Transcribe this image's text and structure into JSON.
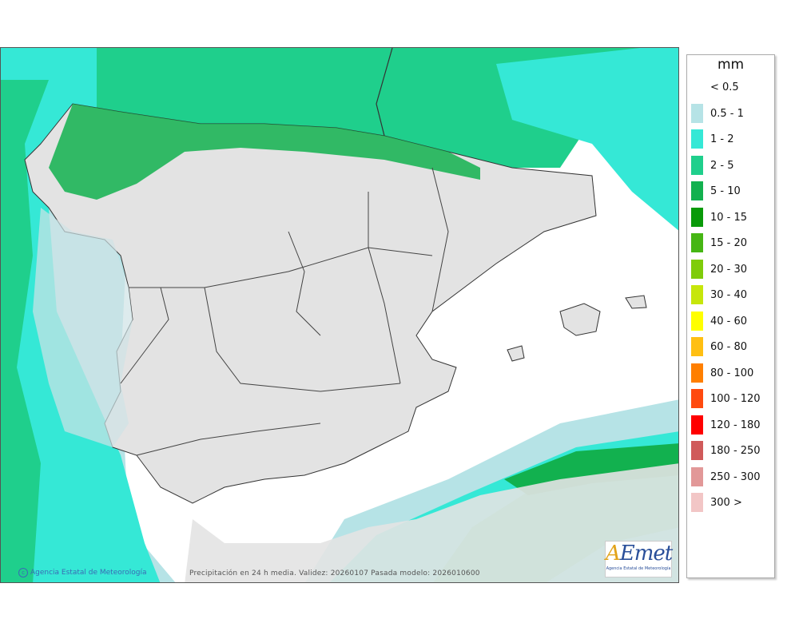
{
  "legend": {
    "unit": "mm",
    "entries": [
      {
        "label": "< 0.5",
        "color": "#ffffff"
      },
      {
        "label": "0.5 - 1",
        "color": "#b6e3e6"
      },
      {
        "label": "1 - 2",
        "color": "#35e8d6"
      },
      {
        "label": "2 - 5",
        "color": "#1fcf8c"
      },
      {
        "label": "5 - 10",
        "color": "#12b14f"
      },
      {
        "label": "10 - 15",
        "color": "#099a09"
      },
      {
        "label": "15 - 20",
        "color": "#46b614"
      },
      {
        "label": "20 - 30",
        "color": "#7fcc0a"
      },
      {
        "label": "30 - 40",
        "color": "#c6e60b"
      },
      {
        "label": "40 - 60",
        "color": "#ffff00"
      },
      {
        "label": "60 - 80",
        "color": "#ffbf12"
      },
      {
        "label": "80 - 100",
        "color": "#ff7f00"
      },
      {
        "label": "100 - 120",
        "color": "#ff4a0f"
      },
      {
        "label": "120 - 180",
        "color": "#ff0000"
      },
      {
        "label": "180 - 250",
        "color": "#d05a5a"
      },
      {
        "label": "250 - 300",
        "color": "#e29898"
      },
      {
        "label": "300 >",
        "color": "#f2c6c6"
      }
    ]
  },
  "footer": {
    "credit": "Agencia Estatal de Meteorología",
    "caption": "Precipitación en 24 h media. Validez: 20260107 Pasada modelo: 2026010600"
  },
  "logo": {
    "word": "AEmet",
    "subtitle": "Agencia Estatal de Meteorología"
  },
  "colors": {
    "land": "#e3e3e3",
    "sea": "#ffffff",
    "border": "#333333"
  }
}
